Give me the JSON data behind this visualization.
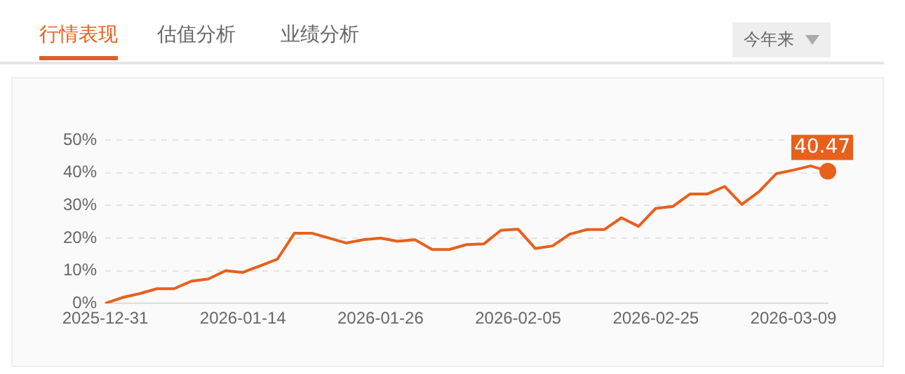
{
  "chart_data": {
    "type": "line",
    "annotations": [
      "行情表现",
      "估值分析",
      "业绩分析",
      "今年来"
    ],
    "categories": [
      "2025-12-31",
      null,
      null,
      null,
      null,
      null,
      null,
      null,
      "2026-01-14",
      null,
      null,
      null,
      null,
      null,
      null,
      null,
      "2026-01-26",
      null,
      null,
      null,
      null,
      null,
      null,
      null,
      "2026-02-05",
      null,
      null,
      null,
      null,
      null,
      null,
      null,
      "2026-02-25",
      null,
      null,
      null,
      null,
      null,
      null,
      null,
      "2026-03-09",
      null,
      null
    ],
    "series": [
      {
        "color": "#e8601c",
        "values": [
          0,
          1.8,
          3,
          4.5,
          4.5,
          6.8,
          7.5,
          10,
          9.5,
          11.5,
          13.5,
          21.5,
          21.5,
          20,
          18.5,
          19.5,
          20,
          19,
          19.5,
          16.5,
          16.5,
          18,
          18.2,
          22.4,
          22.7,
          16.8,
          17.6,
          21.2,
          22.6,
          22.6,
          26.2,
          23.6,
          29.1,
          29.7,
          33.5,
          33.5,
          35.8,
          30.3,
          34.2,
          39.7,
          40.8,
          42.1,
          40.47
        ],
        "value_labels": [
          null,
          null,
          null,
          null,
          null,
          null,
          null,
          null,
          null,
          null,
          null,
          null,
          null,
          null,
          null,
          null,
          null,
          null,
          null,
          null,
          null,
          null,
          null,
          null,
          null,
          null,
          null,
          null,
          null,
          null,
          null,
          null,
          null,
          null,
          null,
          null,
          null,
          null,
          null,
          null,
          null,
          null,
          "40.47"
        ]
      }
    ],
    "ylim": [
      0,
      50
    ],
    "yticks": [
      {
        "value": 0,
        "label": "0%"
      },
      {
        "value": 10,
        "label": "10%"
      },
      {
        "value": 20,
        "label": "20%"
      },
      {
        "value": 30,
        "label": "30%"
      },
      {
        "value": 40,
        "label": "40%"
      },
      {
        "value": 50,
        "label": "50%"
      }
    ],
    "grid": "y",
    "legend": false,
    "marker": "none",
    "line_style": "solid"
  }
}
